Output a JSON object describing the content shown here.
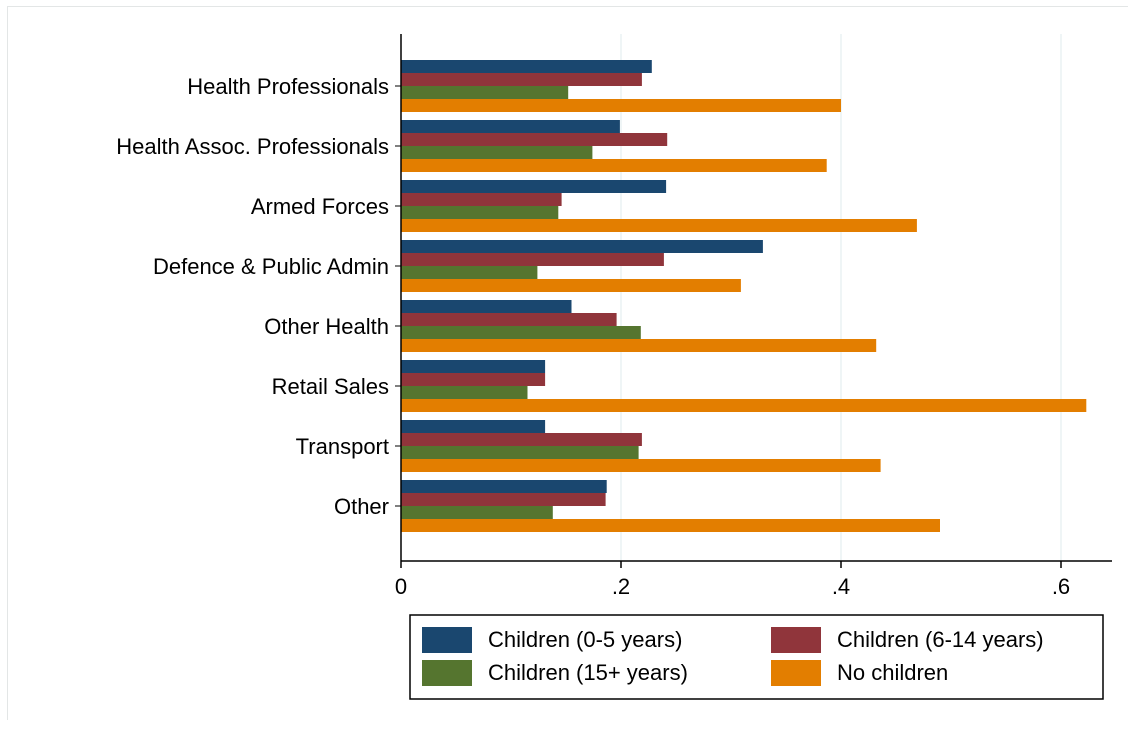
{
  "chart_data": {
    "type": "bar",
    "orientation": "horizontal",
    "title": "",
    "xlabel": "",
    "ylabel": "",
    "xlim": [
      0,
      0.65
    ],
    "xticks": [
      0,
      0.2,
      0.4,
      0.6
    ],
    "xtick_labels": [
      "0",
      ".2",
      ".4",
      ".6"
    ],
    "grid": true,
    "legend_position": "bottom",
    "categories": [
      "Health Professionals",
      "Health Assoc. Professionals",
      "Armed Forces",
      "Defence & Public Admin",
      "Other Health",
      "Retail Sales",
      "Transport",
      "Other"
    ],
    "series": [
      {
        "name": "Children (0-5 years)",
        "color": "#1a476f",
        "values": [
          0.228,
          0.199,
          0.241,
          0.329,
          0.155,
          0.131,
          0.131,
          0.187
        ]
      },
      {
        "name": "Children (6-14 years)",
        "color": "#90353b",
        "values": [
          0.219,
          0.242,
          0.146,
          0.239,
          0.196,
          0.131,
          0.219,
          0.186
        ]
      },
      {
        "name": "Children (15+ years)",
        "color": "#55752f",
        "values": [
          0.152,
          0.174,
          0.143,
          0.124,
          0.218,
          0.115,
          0.216,
          0.138
        ]
      },
      {
        "name": "No children",
        "color": "#e37e00",
        "values": [
          0.4,
          0.387,
          0.469,
          0.309,
          0.432,
          0.623,
          0.436,
          0.49
        ]
      }
    ]
  }
}
